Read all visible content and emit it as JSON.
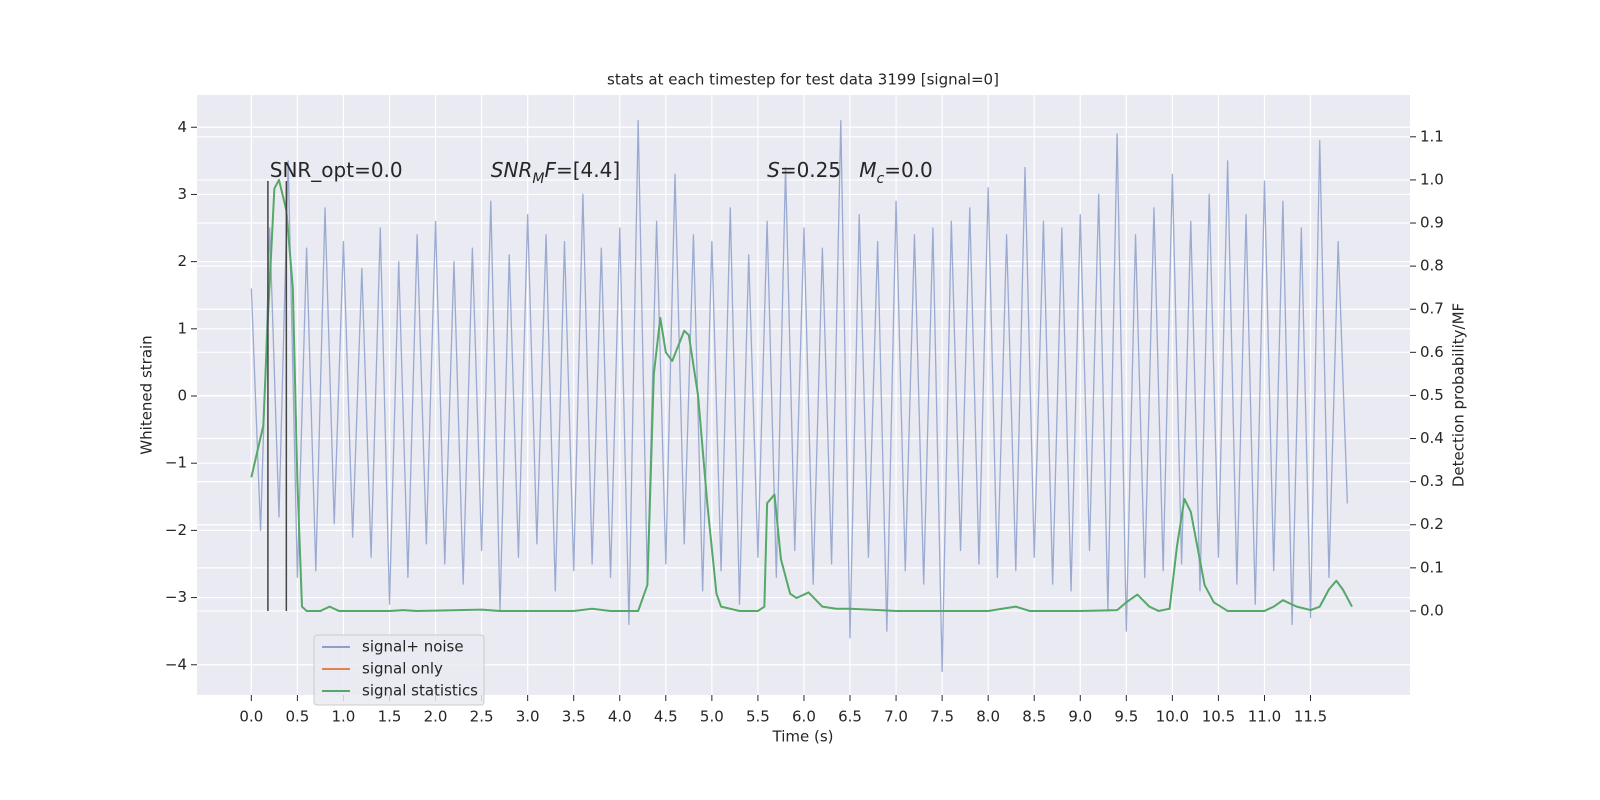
{
  "chart_data": {
    "type": "line",
    "title": "stats at each timestep for test data 3199 [signal=0]",
    "xlabel": "Time (s)",
    "ylabel": "Whitened strain",
    "y2label": "Detection probability/MF",
    "xlim": [
      -0.59,
      12.58
    ],
    "ylim": [
      -4.45,
      4.48
    ],
    "y2lim": [
      -0.195,
      1.197
    ],
    "xticks": [
      {
        "value": 0,
        "label": "0.0"
      },
      {
        "value": 0.5,
        "label": "0.5"
      },
      {
        "value": 1,
        "label": "1.0"
      },
      {
        "value": 1.5,
        "label": "1.5"
      },
      {
        "value": 2,
        "label": "2.0"
      },
      {
        "value": 2.5,
        "label": "2.5"
      },
      {
        "value": 3,
        "label": "3.0"
      },
      {
        "value": 3.5,
        "label": "3.5"
      },
      {
        "value": 4,
        "label": "4.0"
      },
      {
        "value": 4.5,
        "label": "4.5"
      },
      {
        "value": 5,
        "label": "5.0"
      },
      {
        "value": 5.5,
        "label": "5.5"
      },
      {
        "value": 6,
        "label": "6.0"
      },
      {
        "value": 6.5,
        "label": "6.5"
      },
      {
        "value": 7,
        "label": "7.0"
      },
      {
        "value": 7.5,
        "label": "7.5"
      },
      {
        "value": 8,
        "label": "8.0"
      },
      {
        "value": 8.5,
        "label": "8.5"
      },
      {
        "value": 9,
        "label": "9.0"
      },
      {
        "value": 9.5,
        "label": "9.5"
      },
      {
        "value": 10,
        "label": "10.0"
      },
      {
        "value": 10.5,
        "label": "10.5"
      },
      {
        "value": 11,
        "label": "11.0"
      },
      {
        "value": 11.5,
        "label": "11.5"
      }
    ],
    "yticks": [
      {
        "value": -4,
        "label": "−4"
      },
      {
        "value": -3,
        "label": "−3"
      },
      {
        "value": -2,
        "label": "−2"
      },
      {
        "value": -1,
        "label": "−1"
      },
      0,
      1,
      2,
      3,
      4
    ],
    "y2ticks": [
      {
        "value": 0,
        "label": "0.0"
      },
      {
        "value": 0.1,
        "label": "0.1"
      },
      {
        "value": 0.2,
        "label": "0.2"
      },
      {
        "value": 0.3,
        "label": "0.3"
      },
      {
        "value": 0.4,
        "label": "0.4"
      },
      {
        "value": 0.5,
        "label": "0.5"
      },
      {
        "value": 0.6,
        "label": "0.6"
      },
      {
        "value": 0.7,
        "label": "0.7"
      },
      {
        "value": 0.8,
        "label": "0.8"
      },
      {
        "value": 0.9,
        "label": "0.9"
      },
      {
        "value": 1,
        "label": "1.0"
      },
      {
        "value": 1.1,
        "label": "1.1"
      }
    ],
    "grid": true,
    "legend": "lower left",
    "series": [
      {
        "name": "signal+ noise",
        "color": "#8c9fca",
        "x": [
          0.0,
          0.1,
          0.2,
          0.3,
          0.4,
          0.5,
          0.6,
          0.7,
          0.8,
          0.9,
          1.0,
          1.1,
          1.2,
          1.3,
          1.4,
          1.5,
          1.6,
          1.7,
          1.8,
          1.9,
          2.0,
          2.1,
          2.2,
          2.3,
          2.4,
          2.5,
          2.6,
          2.7,
          2.8,
          2.9,
          3.0,
          3.1,
          3.2,
          3.3,
          3.4,
          3.5,
          3.6,
          3.7,
          3.8,
          3.9,
          4.0,
          4.1,
          4.2,
          4.3,
          4.4,
          4.5,
          4.6,
          4.7,
          4.8,
          4.9,
          5.0,
          5.1,
          5.2,
          5.3,
          5.4,
          5.5,
          5.6,
          5.7,
          5.8,
          5.9,
          6.0,
          6.1,
          6.2,
          6.3,
          6.4,
          6.5,
          6.6,
          6.7,
          6.8,
          6.9,
          7.0,
          7.1,
          7.2,
          7.3,
          7.4,
          7.5,
          7.6,
          7.7,
          7.8,
          7.9,
          8.0,
          8.1,
          8.2,
          8.3,
          8.4,
          8.5,
          8.6,
          8.7,
          8.8,
          8.9,
          9.0,
          9.1,
          9.2,
          9.3,
          9.4,
          9.5,
          9.6,
          9.7,
          9.8,
          9.9,
          10.0,
          10.1,
          10.2,
          10.3,
          10.4,
          10.5,
          10.6,
          10.7,
          10.8,
          10.9,
          11.0,
          11.1,
          11.2,
          11.3,
          11.4,
          11.5,
          11.6,
          11.7,
          11.8,
          11.9
        ],
        "values": [
          1.6,
          -2.0,
          2.5,
          -1.8,
          3.5,
          -2.7,
          2.2,
          -2.6,
          2.8,
          -1.9,
          2.3,
          -2.1,
          1.9,
          -2.4,
          2.5,
          -3.1,
          2.0,
          -2.7,
          2.4,
          -2.2,
          2.6,
          -2.5,
          2.0,
          -2.8,
          2.2,
          -2.3,
          2.9,
          -3.2,
          2.1,
          -2.4,
          2.7,
          -2.2,
          2.4,
          -2.9,
          2.3,
          -2.6,
          3.0,
          -2.5,
          2.2,
          -2.7,
          2.5,
          -3.4,
          4.1,
          -2.8,
          2.6,
          -2.5,
          3.3,
          -2.2,
          2.4,
          -2.9,
          2.3,
          -2.6,
          2.8,
          -3.1,
          2.1,
          -2.4,
          2.6,
          -2.7,
          3.4,
          -2.3,
          2.5,
          -2.8,
          2.2,
          -2.5,
          4.1,
          -3.6,
          2.7,
          -2.4,
          2.3,
          -3.5,
          2.9,
          -2.6,
          2.4,
          -2.8,
          2.5,
          -4.1,
          2.6,
          -2.3,
          2.8,
          -2.5,
          3.1,
          -2.7,
          2.4,
          -2.6,
          3.4,
          -2.4,
          2.6,
          -2.8,
          2.5,
          -2.9,
          2.7,
          -2.3,
          3.0,
          -3.2,
          3.9,
          -3.5,
          2.4,
          -2.7,
          2.8,
          -2.6,
          3.3,
          -2.5,
          2.6,
          -2.9,
          3.0,
          -2.4,
          3.5,
          -2.8,
          2.7,
          -3.1,
          3.2,
          -2.6,
          2.9,
          -3.4,
          2.5,
          -3.3,
          3.8,
          -2.7,
          2.3,
          -1.6
        ]
      },
      {
        "name": "signal only",
        "color": "#dd8452",
        "x": [],
        "values": []
      },
      {
        "name": "signal statistics",
        "color": "#55a868",
        "axis": "y2",
        "x": [
          0.0,
          0.13,
          0.18,
          0.25,
          0.3,
          0.38,
          0.45,
          0.5,
          0.55,
          0.6,
          0.75,
          0.85,
          0.95,
          1.5,
          1.65,
          1.8,
          2.5,
          2.7,
          3.5,
          3.7,
          3.9,
          4.2,
          4.3,
          4.37,
          4.44,
          4.5,
          4.57,
          4.7,
          4.75,
          4.85,
          4.95,
          5.05,
          5.1,
          5.3,
          5.5,
          5.57,
          5.6,
          5.68,
          5.75,
          5.85,
          5.92,
          6.05,
          6.2,
          6.35,
          6.5,
          7.0,
          8.0,
          8.15,
          8.3,
          8.45,
          9.0,
          9.4,
          9.5,
          9.62,
          9.75,
          9.85,
          9.97,
          10.05,
          10.13,
          10.2,
          10.35,
          10.45,
          10.6,
          11.0,
          11.1,
          11.2,
          11.35,
          11.5,
          11.6,
          11.7,
          11.78,
          11.85,
          11.95
        ],
        "values": [
          0.31,
          0.43,
          0.68,
          0.98,
          1.0,
          0.93,
          0.75,
          0.3,
          0.01,
          0.0,
          0.0,
          0.01,
          0.0,
          0.0,
          0.002,
          0.0,
          0.003,
          0.0,
          0.0,
          0.005,
          0.0,
          0.0,
          0.06,
          0.55,
          0.68,
          0.6,
          0.58,
          0.65,
          0.64,
          0.5,
          0.25,
          0.04,
          0.01,
          0.0,
          0.0,
          0.01,
          0.25,
          0.27,
          0.12,
          0.04,
          0.03,
          0.043,
          0.01,
          0.005,
          0.005,
          0.0,
          0.0,
          0.005,
          0.01,
          0.0,
          0.0,
          0.002,
          0.02,
          0.038,
          0.01,
          0.0,
          0.005,
          0.15,
          0.26,
          0.23,
          0.06,
          0.02,
          0.0,
          0.0,
          0.01,
          0.025,
          0.01,
          0.002,
          0.01,
          0.05,
          0.07,
          0.05,
          0.01
        ]
      }
    ],
    "vlines": [
      0.18,
      0.38
    ],
    "vline_range": [
      -3.2,
      3.2
    ],
    "vline_color": "#444444",
    "annotations": [
      {
        "x": 0.2,
        "y": 3.35,
        "parts": [
          {
            "text": "SNR_opt=0.0"
          }
        ]
      },
      {
        "x": 2.6,
        "y": 3.35,
        "parts": [
          {
            "text": "SNR",
            "style": "italic"
          },
          {
            "text": "M",
            "style": "italic-sub"
          },
          {
            "text": "F",
            "style": "italic"
          },
          {
            "text": "=[4.4]"
          }
        ]
      },
      {
        "x": 5.6,
        "y": 3.35,
        "parts": [
          {
            "text": "S",
            "style": "italic"
          },
          {
            "text": "=0.25"
          }
        ]
      },
      {
        "x": 6.6,
        "y": 3.35,
        "parts": [
          {
            "text": "M",
            "style": "italic"
          },
          {
            "text": "c",
            "style": "italic-sub"
          },
          {
            "text": "=0.0"
          }
        ]
      }
    ]
  }
}
